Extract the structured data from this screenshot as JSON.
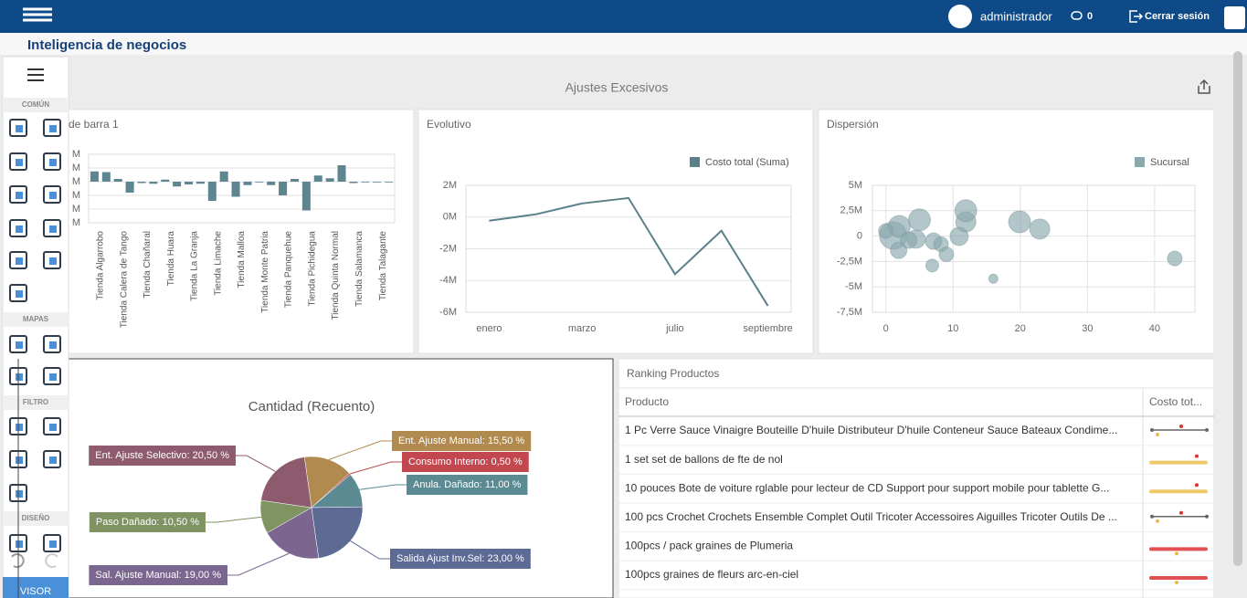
{
  "header": {
    "user": "administrador",
    "messages": "0",
    "logout": "Cerrar sesión"
  },
  "page_title": "Inteligencia de negocios",
  "sidebar": {
    "sections": [
      "COMÚN",
      "MAPAS",
      "FILTRO",
      "DISEÑO"
    ],
    "viewer": "VISOR"
  },
  "dashboard_title": "Ajustes Excesivos",
  "chart_data": [
    {
      "type": "bar",
      "title": "de barra 1",
      "color": "#5d8690",
      "grid": true,
      "categories": [
        "Tienda Algarrobo",
        null,
        "Tienda Calera de Tango",
        null,
        "Tienda Chañaral",
        null,
        "Tienda Huara",
        null,
        "Tienda La Granja",
        null,
        "Tienda Limache",
        null,
        "Tienda Malloa",
        null,
        "Tienda Monte Patria",
        null,
        "Tienda Panquehue",
        null,
        "Tienda Pichidegua",
        null,
        "Tienda Quinta Normal",
        null,
        "Tienda Salamanca",
        null,
        "Tienda Talagante",
        null
      ],
      "values": [
        0.75,
        0.7,
        0.2,
        -0.8,
        -0.1,
        -0.15,
        0.15,
        -0.35,
        -0.2,
        -0.15,
        -1.4,
        0.75,
        -1.1,
        -0.25,
        0,
        -0.25,
        -1.0,
        0.2,
        -2.1,
        0.45,
        0.25,
        1.2,
        -0.1,
        0,
        0,
        0
      ],
      "ylim": [
        -3,
        2
      ],
      "yticks": [
        {
          "value": 2,
          "label": "M"
        },
        {
          "value": 1,
          "label": "M"
        },
        {
          "value": 0,
          "label": "M"
        },
        {
          "value": -1,
          "label": "M"
        },
        {
          "value": -2,
          "label": "M"
        },
        {
          "value": -3,
          "label": "M"
        }
      ]
    },
    {
      "type": "line",
      "title": "Evolutivo",
      "grid": true,
      "categories": [
        "enero",
        null,
        "marzo",
        null,
        "julio",
        null,
        "septiembre"
      ],
      "series": [
        {
          "name": "Costo total (Suma)",
          "color": "#5b808a",
          "values": [
            -0.23,
            0.17,
            0.86,
            1.2,
            -3.6,
            -0.86,
            -5.6
          ]
        }
      ],
      "ylim": [
        -6,
        2
      ],
      "yticks": [
        {
          "value": 2,
          "label": "2M"
        },
        {
          "value": 0,
          "label": "0M"
        },
        {
          "value": -2,
          "label": "-2M"
        },
        {
          "value": -4,
          "label": "-4M"
        },
        {
          "value": -6,
          "label": "-6M"
        }
      ]
    },
    {
      "type": "scatter",
      "title": "Dispersión",
      "grid": true,
      "series": [
        {
          "name": "Sucursal",
          "color": "#8aa8ae",
          "x": [
            1.1,
            2,
            5,
            4.5,
            1.9,
            7.1,
            8.2,
            9,
            6.9,
            10.9,
            11.9,
            11.9,
            19.9,
            22.9,
            16,
            43,
            0,
            3.4
          ],
          "values": [
            0.05,
            0.95,
            1.6,
            -0.3,
            -1.4,
            -0.5,
            -0.8,
            -1.8,
            -2.9,
            -0.03,
            1.4,
            2.5,
            1.4,
            0.7,
            -4.2,
            -2.2,
            0.5,
            -0.4
          ],
          "sizes": [
            15,
            12,
            12,
            10,
            9,
            9,
            8,
            8,
            7,
            10,
            11,
            12,
            12,
            11,
            5,
            8,
            8,
            9
          ]
        }
      ],
      "xlim": [
        -2,
        46
      ],
      "xticks": [
        0,
        10,
        20,
        30,
        40
      ],
      "ylim": [
        -7.5,
        5
      ],
      "yticks": [
        {
          "value": 5,
          "label": "5M"
        },
        {
          "value": 2.5,
          "label": "2,5M"
        },
        0,
        {
          "value": -2.5,
          "label": "-2,5M"
        },
        {
          "value": -5,
          "label": "-5M"
        },
        {
          "value": -7.5,
          "label": "-7,5M"
        }
      ]
    },
    {
      "type": "pie",
      "title": "Cantidad (Recuento)",
      "values": [
        15.5,
        0.5,
        11,
        23,
        19,
        10.5,
        20.5
      ],
      "value_labels": [
        "Ent. Ajuste Manual: 15,50 %",
        "Consumo Interno: 0,50 %",
        "Anula. Dañado: 11,00 %",
        "Salida Ajust Inv.Sel: 23,00 %",
        "Sal. Ajuste Manual: 19,00 %",
        "Paso Dañado: 10,50 %",
        "Ent. Ajuste Selectivo: 20,50 %"
      ],
      "colors": [
        "#b08a4e",
        "#c2474f",
        "#5b8a93",
        "#5c6a94",
        "#7b6690",
        "#7f9363",
        "#8e5a6e"
      ]
    }
  ],
  "ranking": {
    "title": "Ranking Productos",
    "columns": [
      "Producto",
      "Costo tot..."
    ],
    "rows": [
      "1 Pc Verre Sauce Vinaigre Bouteille D'huile Distributeur D'huile Conteneur Sauce Bateaux Condime...",
      "1 set set de ballons de fte de nol",
      "10 pouces Bote de voiture rglable pour lecteur de CD Support pour support mobile pour tablette G...",
      "100 pcs Crochet Crochets Ensemble Complet Outil Tricoter Accessoires Aiguilles Tricoter Outils De ...",
      "100pcs / pack graines de Plumeria",
      "100pcs graines de fleurs arc-en-ciel"
    ]
  }
}
